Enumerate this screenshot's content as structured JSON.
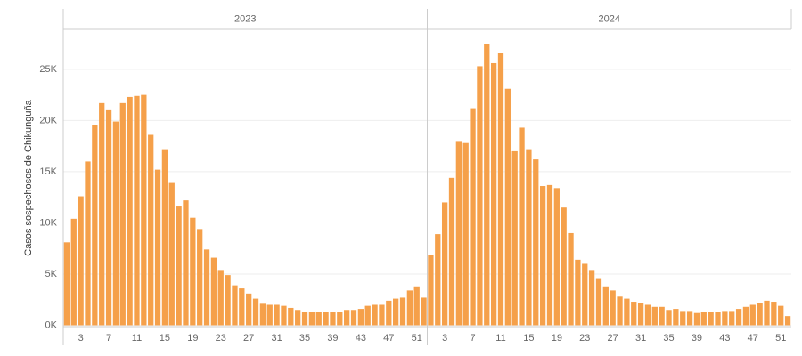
{
  "chart_data": {
    "type": "bar",
    "y_label": "Casos sospechosos de Chikunguña",
    "color": "#f5a04a",
    "grid": true,
    "categories": [
      null,
      null,
      3,
      null,
      null,
      null,
      7,
      null,
      null,
      null,
      11,
      null,
      null,
      null,
      15,
      null,
      null,
      null,
      19,
      null,
      null,
      null,
      23,
      null,
      null,
      null,
      27,
      null,
      null,
      null,
      31,
      null,
      null,
      null,
      35,
      null,
      null,
      null,
      39,
      null,
      null,
      null,
      43,
      null,
      null,
      null,
      47,
      null,
      null,
      null,
      51,
      null
    ],
    "panels": [
      {
        "title": "2023",
        "values": [
          8100,
          10400,
          12600,
          16000,
          19600,
          21700,
          21000,
          19900,
          21700,
          22300,
          22400,
          22500,
          18600,
          15200,
          17200,
          13900,
          11600,
          12200,
          10500,
          9400,
          7400,
          6600,
          5400,
          4900,
          3900,
          3600,
          3100,
          2600,
          2100,
          2000,
          2000,
          1900,
          1700,
          1500,
          1300,
          1300,
          1300,
          1300,
          1300,
          1300,
          1500,
          1500,
          1600,
          1900,
          2000,
          2000,
          2400,
          2600,
          2700,
          3400,
          3800,
          2700
        ]
      },
      {
        "title": "2024",
        "values": [
          6900,
          8900,
          12000,
          14400,
          18000,
          17800,
          21200,
          25300,
          27500,
          25600,
          26600,
          23100,
          17000,
          19300,
          17200,
          16200,
          13600,
          13700,
          13400,
          11500,
          9000,
          6400,
          6000,
          5400,
          4600,
          3800,
          3400,
          2800,
          2600,
          2300,
          2200,
          2000,
          1800,
          1800,
          1500,
          1600,
          1400,
          1400,
          1200,
          1300,
          1300,
          1300,
          1400,
          1400,
          1600,
          1800,
          2000,
          2200,
          2400,
          2300,
          1900,
          900
        ]
      }
    ],
    "ylim": [
      0,
      28900
    ],
    "yticks": [
      {
        "value": 0,
        "label": "0K"
      },
      {
        "value": 5000,
        "label": "5K"
      },
      {
        "value": 10000,
        "label": "10K"
      },
      {
        "value": 15000,
        "label": "15K"
      },
      {
        "value": 20000,
        "label": "20K"
      },
      {
        "value": 25000,
        "label": "25K"
      }
    ]
  }
}
